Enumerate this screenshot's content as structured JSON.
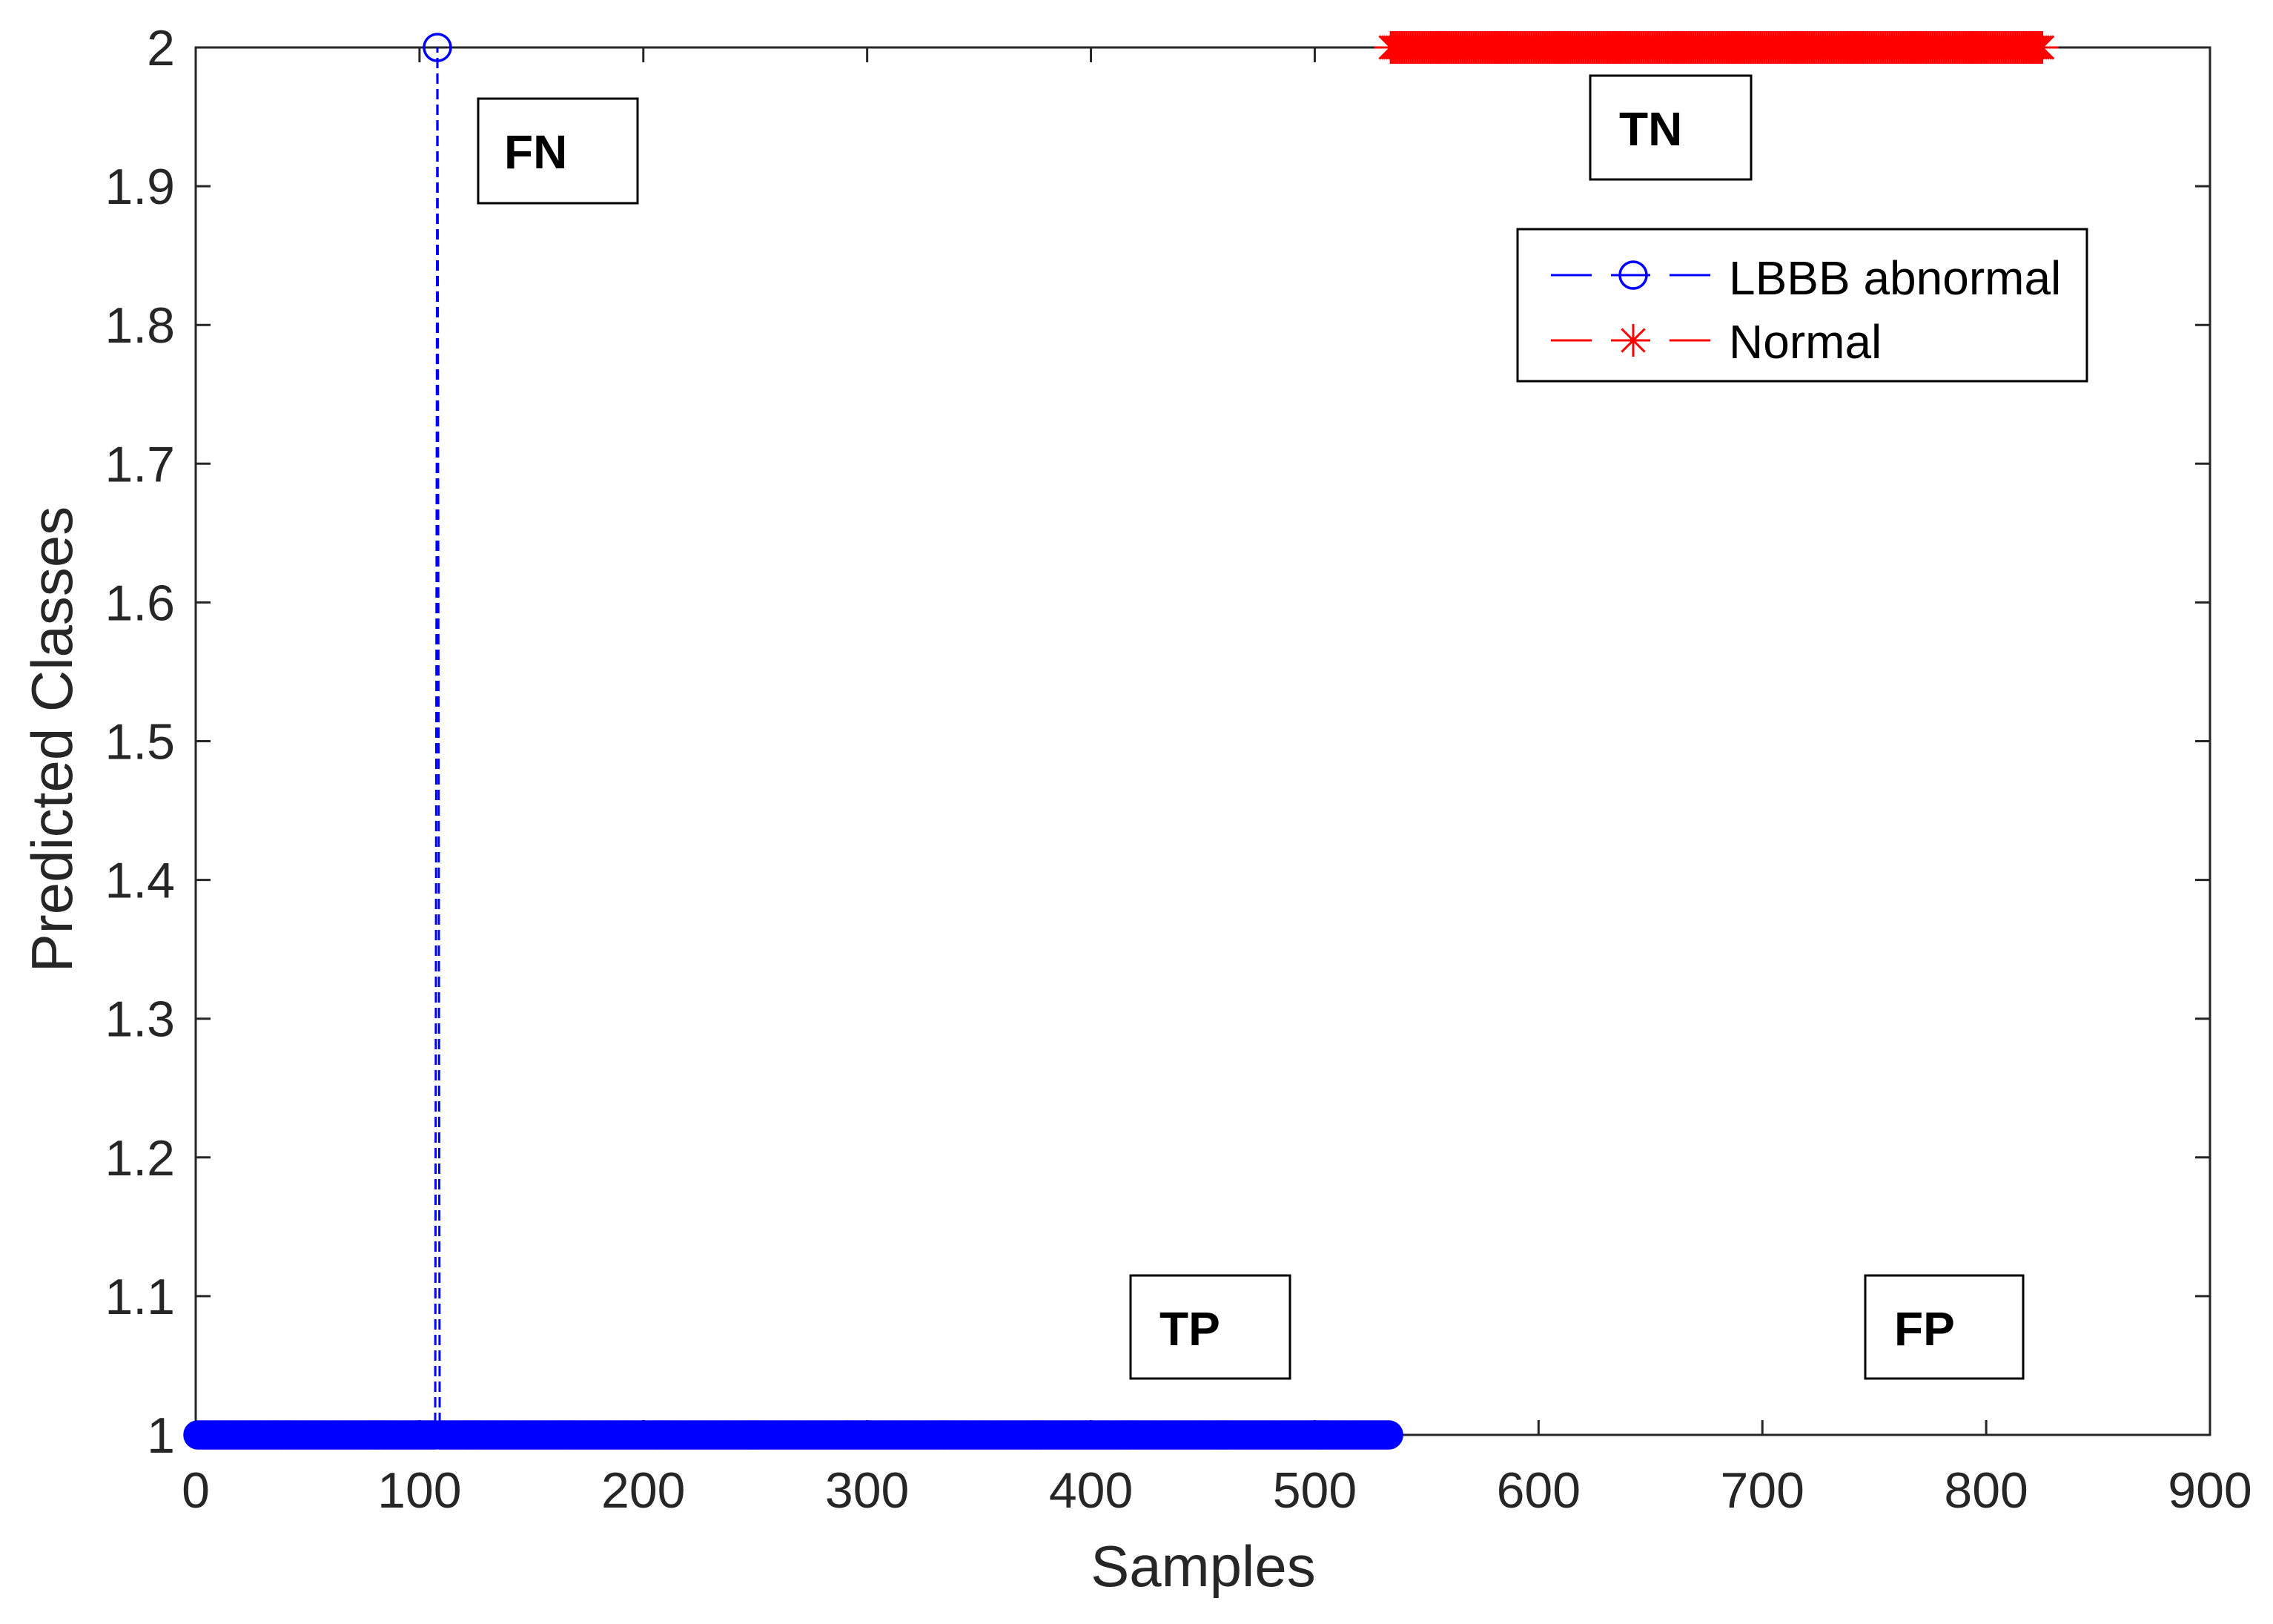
{
  "chart_data": {
    "type": "line",
    "xlabel": "Samples",
    "ylabel": "Predicted Classes",
    "xlim": [
      0,
      900
    ],
    "ylim": [
      1,
      2
    ],
    "xticks": [
      0,
      100,
      200,
      300,
      400,
      500,
      600,
      700,
      800,
      900
    ],
    "xtick_labels": [
      "0",
      "100",
      "200",
      "300",
      "400",
      "500",
      "600",
      "700",
      "800",
      "900"
    ],
    "yticks": [
      1,
      1.1,
      1.2,
      1.3,
      1.4,
      1.5,
      1.6,
      1.7,
      1.8,
      1.9,
      2
    ],
    "ytick_labels": [
      "1",
      "1.1",
      "1.2",
      "1.3",
      "1.4",
      "1.5",
      "1.6",
      "1.7",
      "1.8",
      "1.9",
      "2"
    ],
    "grid": false,
    "legend_position": "top-right",
    "series": [
      {
        "name": "LBBB abnormal",
        "color": "#0000ff",
        "marker": "circle",
        "line_style": "dashed",
        "segments": [
          {
            "x": [
              1,
              107
            ],
            "y": 1
          },
          {
            "x": [
              108,
              108
            ],
            "y": 2
          },
          {
            "x": [
              109,
              533
            ],
            "y": 1
          }
        ]
      },
      {
        "name": "Normal",
        "color": "#ff0000",
        "marker": "asterisk",
        "line_style": "dashed",
        "segments": [
          {
            "x": [
              534,
              825
            ],
            "y": 2
          }
        ]
      }
    ],
    "annotations": {
      "fn": "FN",
      "tn": "TN",
      "tp": "TP",
      "fp": "FP"
    }
  }
}
